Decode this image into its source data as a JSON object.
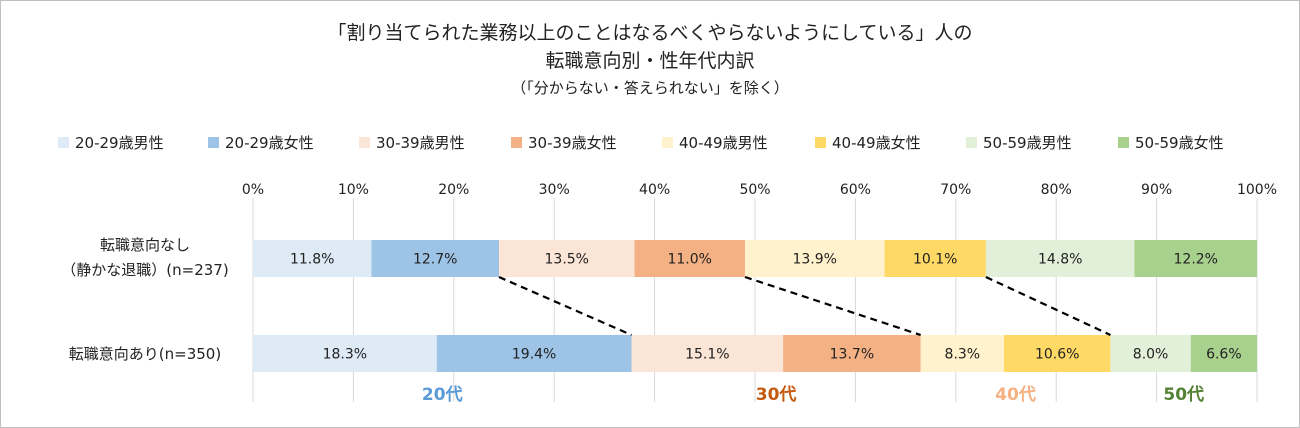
{
  "chart_data": {
    "type": "bar",
    "orientation": "horizontal",
    "stacked": "percent",
    "title": "「割り当てられた業務以上のことはなるべくやらないようにしている」人の",
    "title_line2": "転職意向別・性年代内訳",
    "subtitle": "（「分からない・答えられない」を除く）",
    "categories": [
      {
        "line1": "転職意向なし",
        "line2": "（静かな退職）(n=237)"
      },
      {
        "line1": "転職意向あり(n=350)",
        "line2": ""
      }
    ],
    "x_ticks": [
      "0%",
      "10%",
      "20%",
      "30%",
      "40%",
      "50%",
      "60%",
      "70%",
      "80%",
      "90%",
      "100%"
    ],
    "xlim": [
      0,
      100
    ],
    "grid": true,
    "legend_position": "top",
    "series": [
      {
        "name": "20-29歳男性",
        "color": "#deebf7",
        "values": [
          11.8,
          18.3
        ],
        "labels": [
          "11.8%",
          "18.3%"
        ]
      },
      {
        "name": "20-29歳女性",
        "color": "#9dc3e6",
        "values": [
          12.7,
          19.4
        ],
        "labels": [
          "12.7%",
          "19.4%"
        ]
      },
      {
        "name": "30-39歳男性",
        "color": "#fbe5d6",
        "values": [
          13.5,
          15.1
        ],
        "labels": [
          "13.5%",
          "15.1%"
        ]
      },
      {
        "name": "30-39歳女性",
        "color": "#f4b183",
        "values": [
          11.0,
          13.7
        ],
        "labels": [
          "11.0%",
          "13.7%"
        ]
      },
      {
        "name": "40-49歳男性",
        "color": "#fff2cc",
        "values": [
          13.9,
          8.3
        ],
        "labels": [
          "13.9%",
          "8.3%"
        ]
      },
      {
        "name": "40-49歳女性",
        "color": "#ffd966",
        "values": [
          10.1,
          10.6
        ],
        "labels": [
          "10.1%",
          "10.6%"
        ]
      },
      {
        "name": "50-59歳男性",
        "color": "#e2f0d9",
        "values": [
          14.8,
          8.0
        ],
        "labels": [
          "14.8%",
          "8.0%"
        ]
      },
      {
        "name": "50-59歳女性",
        "color": "#a9d18e",
        "values": [
          12.2,
          6.6
        ],
        "labels": [
          "12.2%",
          "6.6%"
        ]
      }
    ],
    "age_group_labels": [
      {
        "text": "20代",
        "color": "#5b9bd5"
      },
      {
        "text": "30代",
        "color": "#c55a11"
      },
      {
        "text": "40代",
        "color": "#f4b183"
      },
      {
        "text": "50代",
        "color": "#548235"
      }
    ],
    "connector_lines": "dashed"
  }
}
